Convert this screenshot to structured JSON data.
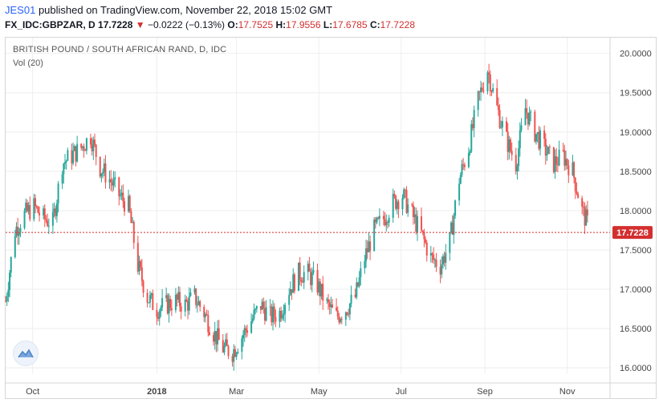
{
  "header": {
    "author": "JES01",
    "published_text": "published on TradingView.com, November 22, 2018 15:02 GMT",
    "symbol": "FX_IDC:GBPZAR, D",
    "last": "17.7228",
    "change": "−0.0222 (−0.13%)",
    "o_label": "O:",
    "o_value": "17.7525",
    "h_label": "H:",
    "h_value": "17.9556",
    "l_label": "L:",
    "l_value": "17.6785",
    "c_label": "C:",
    "c_value": "17.7228"
  },
  "chart_title": "BRITISH POUND / SOUTH AFRICAN RAND, D, IDC",
  "vol_label": "Vol (20)",
  "colors": {
    "up": "#26a69a",
    "down": "#ef5350",
    "price_line": "#d32f2f",
    "grid": "#eeeeee"
  },
  "icons": {
    "logo": "tradingview-logo-icon",
    "direction": "down-triangle-icon"
  },
  "chart_data": {
    "type": "candlestick",
    "title": "BRITISH POUND / SOUTH AFRICAN RAND, D, IDC",
    "ylim": [
      15.93,
      20.2
    ],
    "y_ticks": [
      "16.0000",
      "16.5000",
      "17.0000",
      "17.5000",
      "18.0000",
      "18.5000",
      "19.0000",
      "19.5000",
      "20.0000"
    ],
    "x_ticks": [
      "Oct",
      "2018",
      "Mar",
      "May",
      "Jul",
      "Sep",
      "Nov"
    ],
    "last_price": "17.7228",
    "grid": true,
    "x_start": "2017-09-11",
    "x_end": "2018-11-22",
    "close_series": [
      [
        "2017-09-11",
        16.85
      ],
      [
        "2017-09-18",
        17.75
      ],
      [
        "2017-09-25",
        17.95
      ],
      [
        "2017-10-02",
        18.05
      ],
      [
        "2017-10-09",
        17.9
      ],
      [
        "2017-10-16",
        17.85
      ],
      [
        "2017-10-23",
        18.6
      ],
      [
        "2017-10-30",
        18.7
      ],
      [
        "2017-11-06",
        18.8
      ],
      [
        "2017-11-13",
        18.95
      ],
      [
        "2017-11-20",
        18.55
      ],
      [
        "2017-11-27",
        18.4
      ],
      [
        "2017-12-04",
        18.2
      ],
      [
        "2017-12-11",
        18.05
      ],
      [
        "2017-12-18",
        17.3
      ],
      [
        "2017-12-25",
        16.9
      ],
      [
        "2018-01-01",
        16.75
      ],
      [
        "2018-01-08",
        16.8
      ],
      [
        "2018-01-15",
        16.85
      ],
      [
        "2018-01-22",
        16.8
      ],
      [
        "2018-01-29",
        16.9
      ],
      [
        "2018-02-05",
        16.7
      ],
      [
        "2018-02-12",
        16.45
      ],
      [
        "2018-02-19",
        16.25
      ],
      [
        "2018-02-26",
        16.2
      ],
      [
        "2018-03-05",
        16.4
      ],
      [
        "2018-03-12",
        16.6
      ],
      [
        "2018-03-19",
        16.8
      ],
      [
        "2018-03-26",
        16.65
      ],
      [
        "2018-04-02",
        16.7
      ],
      [
        "2018-04-09",
        17.0
      ],
      [
        "2018-04-16",
        17.2
      ],
      [
        "2018-04-23",
        17.2
      ],
      [
        "2018-04-30",
        17.05
      ],
      [
        "2018-05-07",
        16.8
      ],
      [
        "2018-05-14",
        16.65
      ],
      [
        "2018-05-21",
        16.75
      ],
      [
        "2018-05-28",
        16.9
      ],
      [
        "2018-06-04",
        17.4
      ],
      [
        "2018-06-11",
        17.75
      ],
      [
        "2018-06-18",
        17.9
      ],
      [
        "2018-06-25",
        18.1
      ],
      [
        "2018-07-02",
        18.2
      ],
      [
        "2018-07-09",
        17.95
      ],
      [
        "2018-07-16",
        17.7
      ],
      [
        "2018-07-23",
        17.4
      ],
      [
        "2018-07-30",
        17.3
      ],
      [
        "2018-08-06",
        17.6
      ],
      [
        "2018-08-13",
        18.4
      ],
      [
        "2018-08-20",
        18.8
      ],
      [
        "2018-08-27",
        19.4
      ],
      [
        "2018-09-03",
        19.8
      ],
      [
        "2018-09-10",
        19.3
      ],
      [
        "2018-09-17",
        18.9
      ],
      [
        "2018-09-24",
        18.6
      ],
      [
        "2018-10-01",
        19.3
      ],
      [
        "2018-10-08",
        19.0
      ],
      [
        "2018-10-15",
        18.8
      ],
      [
        "2018-10-22",
        18.6
      ],
      [
        "2018-10-29",
        18.7
      ],
      [
        "2018-11-05",
        18.5
      ],
      [
        "2018-11-12",
        18.0
      ],
      [
        "2018-11-19",
        17.72
      ]
    ]
  }
}
